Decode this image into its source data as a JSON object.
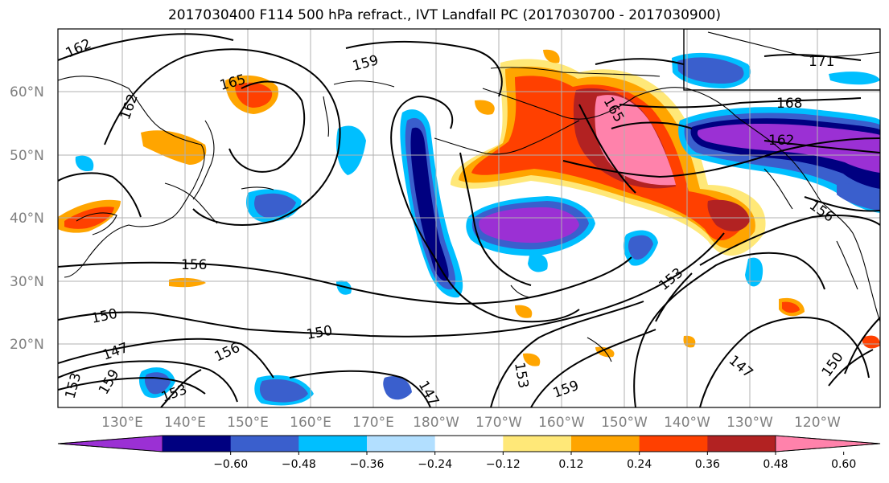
{
  "title": "2017030400 F114 500 hPa refract., IVT Landfall PC (2017030700 - 2017030900)",
  "lat_labels": [
    "60°N",
    "50°N",
    "40°N",
    "30°N",
    "20°N"
  ],
  "lon_labels": [
    "130°E",
    "140°E",
    "150°E",
    "160°E",
    "170°E",
    "180°W",
    "170°W",
    "160°W",
    "150°W",
    "140°W",
    "130°W",
    "120°W"
  ],
  "colorbar": {
    "colors": [
      "#9b30d4",
      "#000080",
      "#3a5fcd",
      "#00bfff",
      "#b2dfff",
      "#ffffff",
      "#ffe878",
      "#ffa500",
      "#ff4000",
      "#b22222",
      "#ff82ab"
    ],
    "tick_labels": [
      "−0.60",
      "−0.48",
      "−0.36",
      "−0.24",
      "−0.12",
      "0.12",
      "0.24",
      "0.36",
      "0.48",
      "0.60"
    ]
  },
  "contour_labels": [
    "162",
    "159",
    "165",
    "162",
    "171",
    "168",
    "165",
    "162",
    "156",
    "156",
    "150",
    "150",
    "147",
    "156",
    "153",
    "147",
    "153",
    "159",
    "153",
    "147",
    "150",
    "159",
    "153"
  ]
}
